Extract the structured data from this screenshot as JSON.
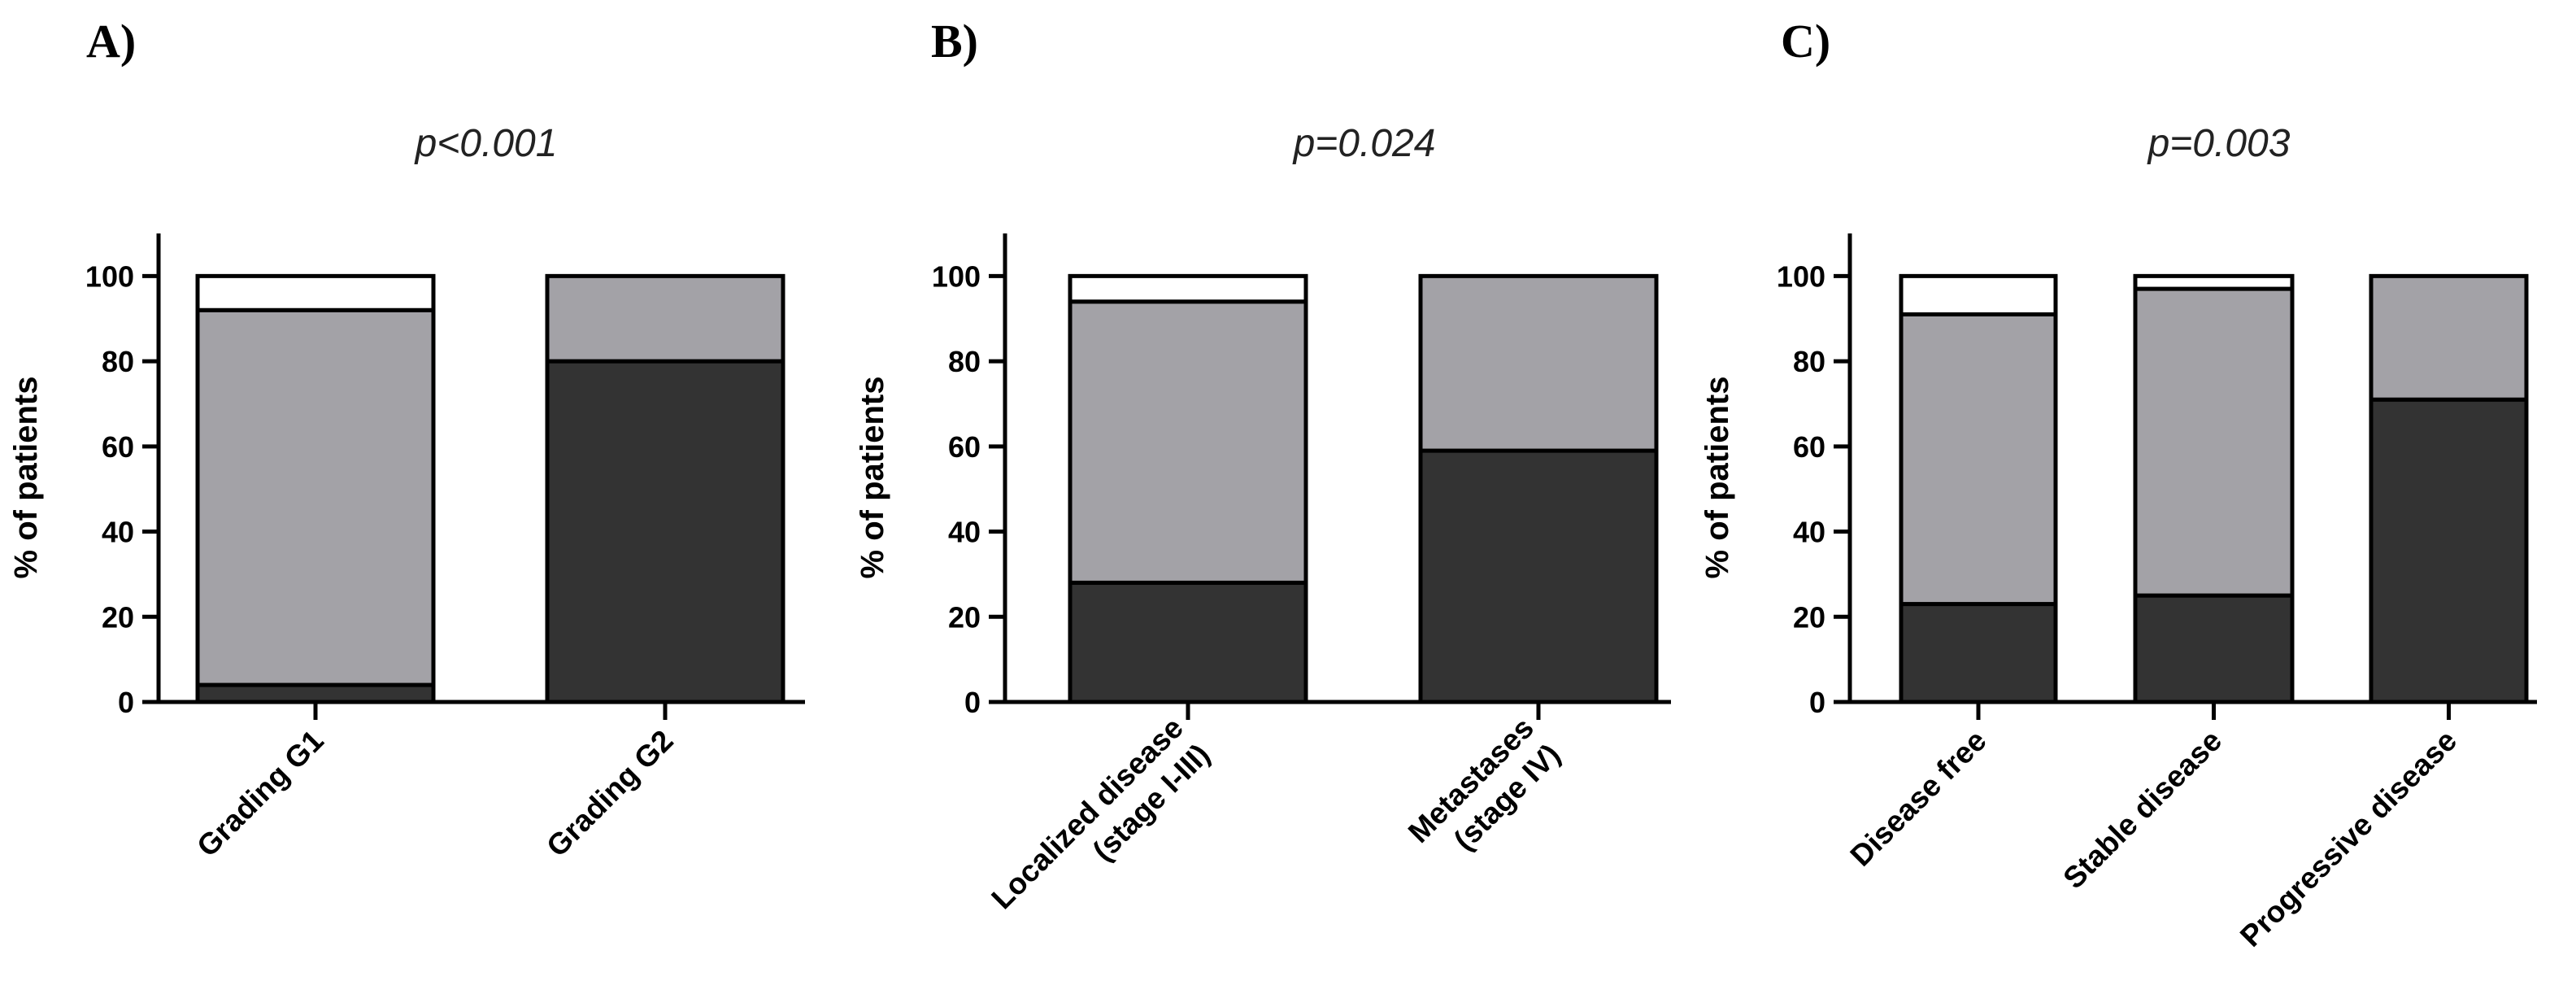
{
  "figure": {
    "colors": {
      "dark": "#333333",
      "mid": "#a3a2a7",
      "light": "#ffffff"
    }
  },
  "chart_data": [
    {
      "type": "bar",
      "stacked": true,
      "panel": "A)",
      "title": "p<0.001",
      "ylabel": "% of patients",
      "ylim": [
        0,
        110
      ],
      "yticks": [
        0,
        20,
        40,
        60,
        80,
        100
      ],
      "grid": false,
      "categories": [
        [
          "Grading G1"
        ],
        [
          "Grading G2"
        ]
      ],
      "series": [
        {
          "name": "dark",
          "values": [
            4,
            80
          ]
        },
        {
          "name": "grey",
          "values": [
            88,
            20
          ]
        },
        {
          "name": "white",
          "values": [
            8,
            0
          ]
        }
      ]
    },
    {
      "type": "bar",
      "stacked": true,
      "panel": "B)",
      "title": "p=0.024",
      "ylabel": "% of patients",
      "ylim": [
        0,
        110
      ],
      "yticks": [
        0,
        20,
        40,
        60,
        80,
        100
      ],
      "grid": false,
      "categories": [
        [
          "Localized disease",
          "(stage I-III)"
        ],
        [
          "Metastases",
          "(stage IV)"
        ]
      ],
      "series": [
        {
          "name": "dark",
          "values": [
            28,
            59
          ]
        },
        {
          "name": "grey",
          "values": [
            66,
            41
          ]
        },
        {
          "name": "white",
          "values": [
            6,
            0
          ]
        }
      ]
    },
    {
      "type": "bar",
      "stacked": true,
      "panel": "C)",
      "title": "p=0.003",
      "ylabel": "% of patients",
      "ylim": [
        0,
        110
      ],
      "yticks": [
        0,
        20,
        40,
        60,
        80,
        100
      ],
      "grid": false,
      "categories": [
        [
          "Disease free"
        ],
        [
          "Stable disease"
        ],
        [
          "Progressive disease"
        ]
      ],
      "series": [
        {
          "name": "dark",
          "values": [
            23,
            25,
            71
          ]
        },
        {
          "name": "grey",
          "values": [
            68,
            72,
            29
          ]
        },
        {
          "name": "white",
          "values": [
            9,
            3,
            0
          ]
        }
      ]
    }
  ]
}
